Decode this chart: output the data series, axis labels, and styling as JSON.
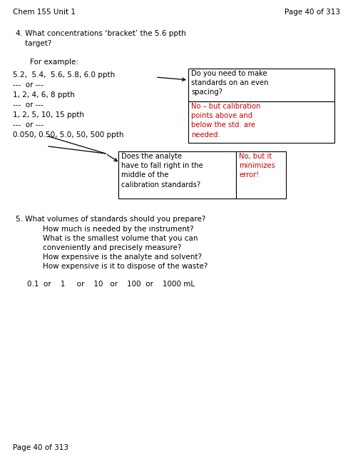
{
  "header_left": "Chem 155 Unit 1",
  "header_right": "Page 40 of 313",
  "footer": "Page 40 of 313",
  "q4_text": "4. What concentrations ‘bracket’ the 5.6 ppth\n    target?",
  "for_example": "For example:",
  "examples": [
    "5.2,  5.4,  5.6, 5.8, 6.0 ppth",
    "---  or ---",
    "1, 2, 4, 6, 8 ppth",
    "---  or ---",
    "1, 2, 5, 10, 15 ppth",
    "---  or ---",
    "0.050, 0.50, 5.0, 50, 500 ppth"
  ],
  "box1_title": "Do you need to make\nstandards on an even\nspacing?",
  "box1_answer": "No – but calibration\npoints above and\nbelow the std. are\nneeded.",
  "box2_question": "Does the analyte\nhave to fall right in the\nmiddle of the\ncalibration standards?",
  "box2_answer": "No, but it\nminimizes\nerror!",
  "q5_line1": "5. What volumes of standards should you prepare?",
  "q5_lines": [
    "How much is needed by the instrument?",
    "What is the smallest volume that you can",
    "conveniently and precisely measure?",
    "How expensive is the analyte and solvent?",
    "How expensive is it to dispose of the waste?"
  ],
  "volumes": "0.1  or    1     or    10   or    100  or    1000 mL",
  "background": "#ffffff",
  "text_color": "#000000",
  "red_color": "#cc0000",
  "box_border": "#000000",
  "fs_header": 7.5,
  "fs_body": 7.5,
  "fs_small": 7.2
}
